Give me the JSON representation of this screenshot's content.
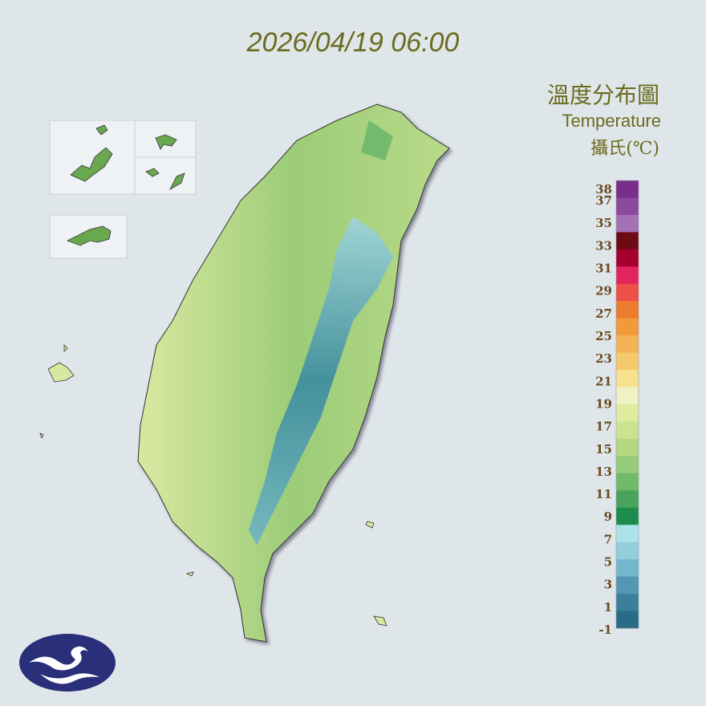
{
  "title": "2026/04/19 06:00",
  "legend": {
    "title": "溫度分布圖",
    "subtitle": "Temperature",
    "unit": "攝氏(℃)",
    "ticks": [
      38,
      37,
      35,
      33,
      31,
      29,
      27,
      25,
      23,
      21,
      19,
      17,
      15,
      13,
      11,
      9,
      7,
      5,
      3,
      1,
      -1
    ],
    "colors": [
      "#7a2e8c",
      "#8c4a9c",
      "#a472b4",
      "#6e0a14",
      "#a8002c",
      "#e2245c",
      "#ee5048",
      "#ec7c2e",
      "#f09a3c",
      "#f3b456",
      "#f5ca6a",
      "#f7e08e",
      "#eef2c4",
      "#dfeca0",
      "#cbe290",
      "#b2d882",
      "#94cc78",
      "#70ba6a",
      "#48a45c",
      "#1e8c4c",
      "#aee2ea",
      "#92cedc",
      "#72b8cc",
      "#5298b4",
      "#3a809c",
      "#286c88"
    ]
  }
}
